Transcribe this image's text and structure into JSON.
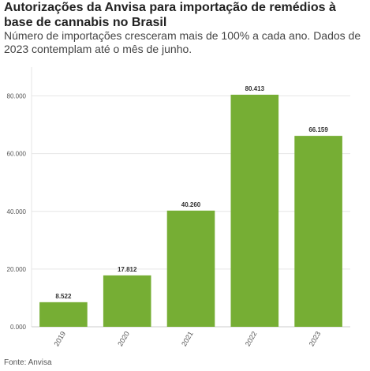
{
  "header": {
    "title": "Autorizações da Anvisa para importação de remédios à base de cannabis no Brasil",
    "subtitle": "Número de importações cresceram mais de 100% a cada ano. Dados de 2023 contemplam até o mês de junho."
  },
  "footer": {
    "source": "Fonte: Anvisa"
  },
  "colors": {
    "bar": "#76AE34",
    "grid": "#e6e6e6",
    "axis": "#cccccc",
    "text": "#555555"
  },
  "chart_data": {
    "type": "bar",
    "categories": [
      "2019",
      "2020",
      "2021",
      "2022",
      "2023"
    ],
    "values": [
      8522,
      17812,
      40260,
      80413,
      66159
    ],
    "value_labels": [
      "8.522",
      "17.812",
      "40.260",
      "80.413",
      "66.159"
    ],
    "yticks": [
      0,
      20000,
      40000,
      60000,
      80000
    ],
    "ytick_labels": [
      "0.000",
      "20.000",
      "40.000",
      "60.000",
      "80.000"
    ],
    "ylim": [
      0,
      80413
    ],
    "grid": true,
    "legend": "none"
  }
}
